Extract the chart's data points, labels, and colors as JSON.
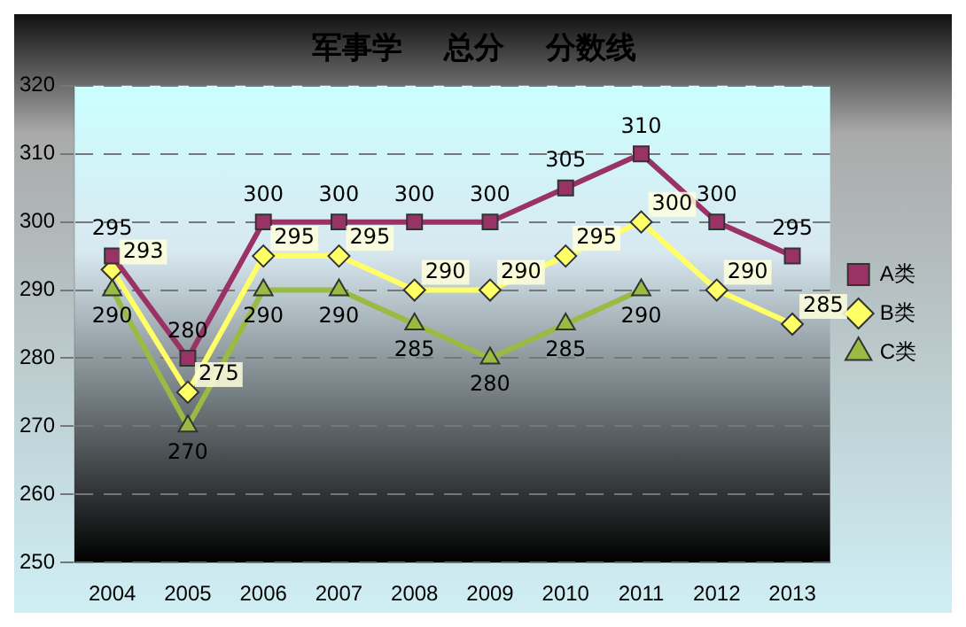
{
  "chart_data": {
    "type": "line",
    "title": "军事学    总分    分数线",
    "categories": [
      "2004",
      "2005",
      "2006",
      "2007",
      "2008",
      "2009",
      "2010",
      "2011",
      "2012",
      "2013"
    ],
    "series": [
      {
        "name": "A类",
        "color": "#993366",
        "marker": "square",
        "values": [
          295,
          280,
          300,
          300,
          300,
          300,
          305,
          310,
          300,
          295
        ]
      },
      {
        "name": "B类",
        "color": "#ffff66",
        "marker": "diamond",
        "values": [
          293,
          275,
          295,
          295,
          290,
          290,
          295,
          300,
          290,
          285
        ]
      },
      {
        "name": "C类",
        "color": "#99bb44",
        "marker": "triangle",
        "values": [
          290,
          270,
          290,
          290,
          285,
          280,
          285,
          290,
          null,
          null
        ]
      }
    ],
    "ylim": [
      250,
      320
    ],
    "yticks": [
      250,
      260,
      270,
      280,
      290,
      300,
      310,
      320
    ],
    "grid": "y",
    "legend": "right",
    "data_labels": true
  }
}
